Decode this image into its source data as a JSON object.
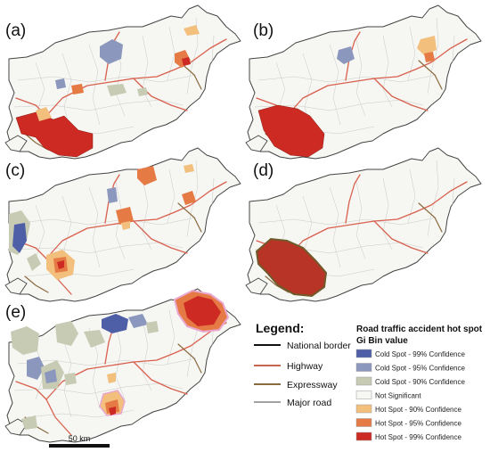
{
  "panels": [
    "(a)",
    "(b)",
    "(c)",
    "(d)",
    "(e)"
  ],
  "legend": {
    "title": "Legend:",
    "items": [
      {
        "label": "National border",
        "color": "#111111"
      },
      {
        "label": "Highway",
        "color": "#c9654c"
      },
      {
        "label": "Expressway",
        "color": "#8a6a3e"
      },
      {
        "label": "Major road",
        "color": "#444444"
      }
    ]
  },
  "hotspot_legend": {
    "title": "Road traffic accident hot spot",
    "subtitle": "Gi Bin value",
    "items": [
      {
        "label": "Cold Spot - 99% Confidence",
        "color": "#4e5fa8"
      },
      {
        "label": "Cold Spot - 95% Confidence",
        "color": "#8c97bd"
      },
      {
        "label": "Cold Spot - 90% Confidence",
        "color": "#c7cbb4"
      },
      {
        "label": "Not Significant",
        "color": "#f6f6f2"
      },
      {
        "label": "Hot Spot - 90% Confidence",
        "color": "#f2bf7d"
      },
      {
        "label": "Hot Spot - 95% Confidence",
        "color": "#e67a45"
      },
      {
        "label": "Hot Spot - 99% Confidence",
        "color": "#cc2a22"
      }
    ]
  },
  "scale_bar": {
    "label": "50 km"
  }
}
